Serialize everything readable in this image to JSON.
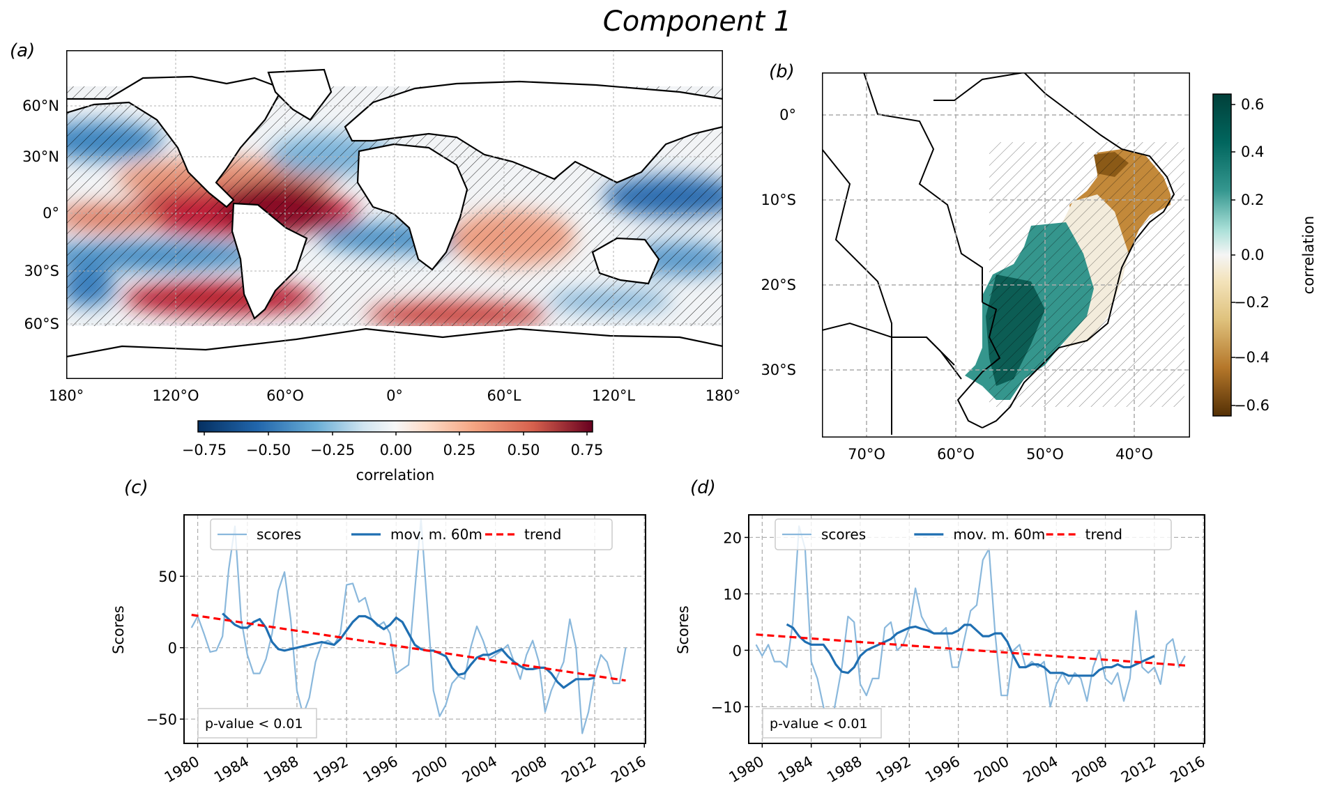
{
  "figure": {
    "title": "Component 1"
  },
  "colors": {
    "scores": "#8ab8dc",
    "moving_mean": "#1f6fb2",
    "trend": "#ff0000",
    "grid": "#b0b0b0"
  },
  "chart_data": [
    {
      "panel": "(a)",
      "type": "heatmap",
      "title": "",
      "description": "Global sea surface correlation map with hatching over non-significant areas",
      "lat_ticks": [
        "60°N",
        "30°N",
        "0°",
        "30°S",
        "60°S"
      ],
      "lon_ticks": [
        "180°",
        "120°O",
        "60°O",
        "0°",
        "60°L",
        "120°L",
        "180°"
      ],
      "colorbar": {
        "label": "correlation",
        "ticks": [
          "−0.75",
          "−0.50",
          "−0.25",
          "0.00",
          "0.25",
          "0.50",
          "0.75"
        ],
        "range": [
          -0.78,
          0.78
        ],
        "cmap": "RdBu_r",
        "orientation": "horizontal"
      },
      "features": [
        {
          "region": "Eastern equatorial Pacific",
          "value": 0.75
        },
        {
          "region": "South Pacific ~50°S",
          "value": 0.65
        },
        {
          "region": "Western Pacific 0-10°N",
          "value": -0.6
        },
        {
          "region": "North Pacific ~30°N",
          "value": -0.5
        },
        {
          "region": "South Atlantic ~10°S",
          "value": -0.45
        },
        {
          "region": "Indian Ocean",
          "value": 0.35
        },
        {
          "region": "Southern Ocean south of Africa",
          "value": 0.5
        }
      ],
      "grid": true
    },
    {
      "panel": "(b)",
      "type": "heatmap",
      "description": "Brazil regional correlation map",
      "lat_ticks": [
        "0°",
        "10°S",
        "20°S",
        "30°S"
      ],
      "lon_ticks": [
        "70°O",
        "60°O",
        "50°O",
        "40°O"
      ],
      "colorbar": {
        "label": "correlation",
        "ticks": [
          "0.6",
          "0.4",
          "0.2",
          "0.0",
          "−0.2",
          "−0.4",
          "−0.6"
        ],
        "range": [
          -0.65,
          0.65
        ],
        "cmap": "BrBG",
        "orientation": "vertical"
      },
      "features": [
        {
          "region": "Northeast Brazil",
          "value": -0.45
        },
        {
          "region": "Southern Brazil",
          "value": 0.55
        },
        {
          "region": "Central-east Brazil",
          "value": 0.05
        }
      ],
      "grid": true
    },
    {
      "panel": "(c)",
      "type": "line",
      "xlabel": "",
      "ylabel": "Scores",
      "xlim": [
        1978.9,
        2016.1
      ],
      "ylim": [
        -67,
        93
      ],
      "x_ticks": [
        "1980",
        "1984",
        "1988",
        "1992",
        "1996",
        "2000",
        "2004",
        "2008",
        "2012",
        "2016"
      ],
      "y_ticks": [
        "−50",
        "0",
        "50"
      ],
      "y_tick_values": [
        -50,
        0,
        50
      ],
      "legend": [
        "scores",
        "mov. m. 60m",
        "trend"
      ],
      "legend_position": "top",
      "annotation": "p-value < 0.01",
      "grid": true,
      "series": [
        {
          "name": "scores",
          "x": [
            1979.5,
            1980,
            1980.5,
            1981,
            1981.5,
            1982,
            1982.5,
            1983,
            1983.5,
            1984,
            1984.5,
            1985,
            1985.5,
            1986,
            1986.5,
            1987,
            1987.5,
            1988,
            1988.5,
            1989,
            1989.5,
            1990,
            1990.5,
            1991,
            1991.5,
            1992,
            1992.5,
            1993,
            1993.5,
            1994,
            1994.5,
            1995,
            1995.5,
            1996,
            1996.5,
            1997,
            1997.5,
            1998,
            1998.5,
            1999,
            1999.5,
            2000,
            2000.5,
            2001,
            2001.5,
            2002,
            2002.5,
            2003,
            2003.5,
            2004,
            2004.5,
            2005,
            2005.5,
            2006,
            2006.5,
            2007,
            2007.5,
            2008,
            2008.5,
            2009,
            2009.5,
            2010,
            2010.5,
            2011,
            2011.5,
            2012,
            2012.5,
            2013,
            2013.5,
            2014,
            2014.5
          ],
          "values": [
            14,
            22,
            10,
            -3,
            -2,
            8,
            55,
            85,
            20,
            -5,
            -18,
            -18,
            -8,
            10,
            40,
            53,
            20,
            -30,
            -47,
            -35,
            -10,
            3,
            5,
            2,
            10,
            44,
            45,
            32,
            35,
            20,
            15,
            18,
            10,
            -18,
            -15,
            -12,
            40,
            90,
            30,
            -30,
            -48,
            -40,
            -25,
            -20,
            -22,
            0,
            15,
            5,
            -8,
            -5,
            -2,
            2,
            -10,
            -22,
            -5,
            5,
            -10,
            -45,
            -30,
            -20,
            -10,
            20,
            0,
            -60,
            -45,
            -20,
            -5,
            -10,
            -25,
            -25,
            0
          ]
        },
        {
          "name": "mov. m. 60m",
          "x": [
            1982,
            1982.5,
            1983,
            1983.5,
            1984,
            1984.5,
            1985,
            1985.5,
            1986,
            1986.5,
            1987,
            1987.5,
            1988,
            1988.5,
            1989,
            1989.5,
            1990,
            1990.5,
            1991,
            1991.5,
            1992,
            1992.5,
            1993,
            1993.5,
            1994,
            1994.5,
            1995,
            1995.5,
            1996,
            1996.5,
            1997,
            1997.5,
            1998,
            1998.5,
            1999,
            1999.5,
            2000,
            2000.5,
            2001,
            2001.5,
            2002,
            2002.5,
            2003,
            2003.5,
            2004,
            2004.5,
            2005,
            2005.5,
            2006,
            2006.5,
            2007,
            2007.5,
            2008,
            2008.5,
            2009,
            2009.5,
            2010,
            2010.5,
            2011,
            2011.5,
            2012
          ],
          "values": [
            24,
            20,
            16,
            14,
            14,
            18,
            20,
            14,
            4,
            -1,
            -2,
            -1,
            0,
            1,
            2,
            3,
            4,
            3,
            2,
            6,
            12,
            18,
            22,
            22,
            20,
            16,
            13,
            16,
            21,
            18,
            10,
            2,
            -1,
            -2,
            -2,
            -4,
            -6,
            -14,
            -19,
            -18,
            -12,
            -7,
            -5,
            -5,
            -3,
            -1,
            -6,
            -10,
            -13,
            -15,
            -15,
            -14,
            -14,
            -18,
            -24,
            -28,
            -25,
            -22,
            -22,
            -22,
            -21
          ]
        },
        {
          "name": "trend",
          "x": [
            1979.5,
            2014.5
          ],
          "values": [
            23,
            -23
          ]
        }
      ]
    },
    {
      "panel": "(d)",
      "type": "line",
      "xlabel": "",
      "ylabel": "Scores",
      "xlim": [
        1978.9,
        2016.1
      ],
      "ylim": [
        -16.5,
        24
      ],
      "x_ticks": [
        "1980",
        "1984",
        "1988",
        "1992",
        "1996",
        "2000",
        "2004",
        "2008",
        "2012",
        "2016"
      ],
      "y_ticks": [
        "−10",
        "0",
        "10",
        "20"
      ],
      "y_tick_values": [
        -10,
        0,
        10,
        20
      ],
      "legend": [
        "scores",
        "mov. m. 60m",
        "trend"
      ],
      "legend_position": "top",
      "annotation": "p-value < 0.01",
      "grid": true,
      "series": [
        {
          "name": "scores",
          "x": [
            1979.5,
            1980,
            1980.5,
            1981,
            1981.5,
            1982,
            1982.5,
            1983,
            1983.5,
            1984,
            1984.5,
            1985,
            1985.5,
            1986,
            1986.5,
            1987,
            1987.5,
            1988,
            1988.5,
            1989,
            1989.5,
            1990,
            1990.5,
            1991,
            1991.5,
            1992,
            1992.5,
            1993,
            1993.5,
            1994,
            1994.5,
            1995,
            1995.5,
            1996,
            1996.5,
            1997,
            1997.5,
            1998,
            1998.5,
            1999,
            1999.5,
            2000,
            2000.5,
            2001,
            2001.5,
            2002,
            2002.5,
            2003,
            2003.5,
            2004,
            2004.5,
            2005,
            2005.5,
            2006,
            2006.5,
            2007,
            2007.5,
            2008,
            2008.5,
            2009,
            2009.5,
            2010,
            2010.5,
            2011,
            2011.5,
            2012,
            2012.5,
            2013,
            2013.5,
            2014,
            2014.5
          ],
          "values": [
            1,
            -1,
            1,
            -2,
            -2,
            -3,
            5,
            22,
            18,
            -2,
            -5,
            -10,
            -15,
            -9,
            -3,
            6,
            5,
            -6,
            -8,
            -5,
            -5,
            4,
            5,
            0,
            1,
            4,
            11,
            6,
            4,
            3,
            3,
            4,
            -3,
            -3,
            2,
            7,
            8,
            16,
            18,
            3,
            -8,
            -8,
            0,
            1,
            -3,
            -2,
            -3,
            -2,
            -10,
            -6,
            -4,
            -6,
            -4,
            -5,
            -9,
            -3,
            0,
            -5,
            -6,
            -4,
            -9,
            -5,
            7,
            -3,
            -4,
            -3,
            -6,
            1,
            2,
            -3,
            -1
          ]
        },
        {
          "name": "mov. m. 60m",
          "x": [
            1982,
            1982.5,
            1983,
            1983.5,
            1984,
            1984.5,
            1985,
            1985.5,
            1986,
            1986.5,
            1987,
            1987.5,
            1988,
            1988.5,
            1989,
            1989.5,
            1990,
            1990.5,
            1991,
            1991.5,
            1992,
            1992.5,
            1993,
            1993.5,
            1994,
            1994.5,
            1995,
            1995.5,
            1996,
            1996.5,
            1997,
            1997.5,
            1998,
            1998.5,
            1999,
            1999.5,
            2000,
            2000.5,
            2001,
            2001.5,
            2002,
            2002.5,
            2003,
            2003.5,
            2004,
            2004.5,
            2005,
            2005.5,
            2006,
            2006.5,
            2007,
            2007.5,
            2008,
            2008.5,
            2009,
            2009.5,
            2010,
            2010.5,
            2011,
            2011.5,
            2012
          ],
          "values": [
            4.6,
            4,
            2.5,
            1.5,
            1,
            1,
            1,
            -0.5,
            -2.5,
            -3.8,
            -4,
            -3,
            -1,
            0,
            0.5,
            1,
            1.5,
            2,
            3,
            3.5,
            4,
            4.2,
            3.8,
            3.5,
            3,
            3,
            3,
            3,
            3.5,
            4.5,
            4.5,
            3.5,
            2.5,
            2.5,
            3,
            3,
            1.5,
            -1,
            -3,
            -3,
            -2.5,
            -2.5,
            -3,
            -4,
            -4,
            -4,
            -4.5,
            -4.5,
            -4.5,
            -4.5,
            -4.5,
            -3.5,
            -3,
            -3,
            -2.5,
            -3,
            -3,
            -2.5,
            -2,
            -1.5,
            -1
          ]
        },
        {
          "name": "trend",
          "x": [
            1979.5,
            2014.5
          ],
          "values": [
            2.8,
            -2.7
          ]
        }
      ]
    }
  ]
}
